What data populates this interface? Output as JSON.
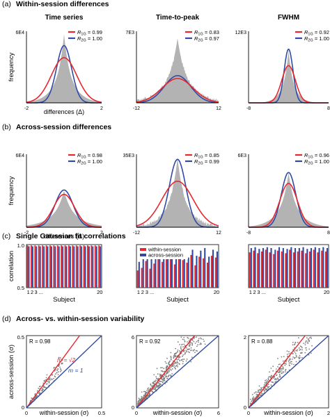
{
  "figure": {
    "section_titles": [
      {
        "letter": "(a)",
        "title": "Within-session differences"
      },
      {
        "letter": "(b)",
        "title": "Across-session differences"
      },
      {
        "letter": "(c)",
        "title": "Single Gaussian fit correlations"
      },
      {
        "letter": "(d)",
        "title": "Across- vs. within-session variability"
      }
    ],
    "column_titles": [
      "Time series",
      "Time-to-peak",
      "FWHM"
    ],
    "colors": {
      "red": "#e8262d",
      "blue": "#2f4aa5",
      "gray": "#b3b3b3",
      "dark_gray": "#808080"
    }
  },
  "chart_data": [
    {
      "id": "a1",
      "type": "area",
      "row": "a",
      "col": 0,
      "ylabel": "frequency",
      "xlabel": "differences (Δ)",
      "xlim": [
        -2,
        2
      ],
      "ymax_label": "6E4",
      "xtick_labels": [
        "-2",
        "2"
      ],
      "peak": 0.96,
      "sigma": 0.085,
      "fit_1g": {
        "sigma": 0.17,
        "amp": 0.63
      },
      "fit_2g": {
        "sigma": 0.1,
        "amp": 0.8
      },
      "legend": [
        {
          "label": "1G",
          "value": "0.99",
          "color": "red"
        },
        {
          "label": "2G",
          "value": "1.00",
          "color": "blue"
        }
      ]
    },
    {
      "id": "a2",
      "type": "area",
      "row": "a",
      "col": 1,
      "ylabel": "",
      "xlabel": "",
      "xlim": [
        -12,
        12
      ],
      "ymax_label": "7E3",
      "xtick_labels": [
        "-12",
        "12"
      ],
      "peak": 0.9,
      "sigma": 0.11,
      "fit_1g": {
        "sigma": 0.19,
        "amp": 0.34
      },
      "fit_2g": {
        "sigma": 0.16,
        "amp": 0.38
      },
      "legend": [
        {
          "label": "1G",
          "value": "0.83",
          "color": "red"
        },
        {
          "label": "2G",
          "value": "0.97",
          "color": "blue"
        }
      ]
    },
    {
      "id": "a3",
      "type": "area",
      "row": "a",
      "col": 2,
      "ylabel": "",
      "xlabel": "",
      "xlim": [
        -8,
        8
      ],
      "ymax_label": "12E3",
      "xtick_labels": [
        "-8",
        "8"
      ],
      "peak": 0.74,
      "sigma": 0.055,
      "fit_1g": {
        "sigma": 0.085,
        "amp": 0.52
      },
      "fit_2g": {
        "sigma": 0.055,
        "amp": 0.75
      },
      "legend": [
        {
          "label": "1G",
          "value": "0.92",
          "color": "red"
        },
        {
          "label": "2G",
          "value": "1.00",
          "color": "blue"
        }
      ]
    },
    {
      "id": "b1",
      "type": "area",
      "row": "b",
      "col": 0,
      "ylabel": "frequency",
      "xlabel": "differences (Δ)",
      "xlim": [
        -2,
        2
      ],
      "ymax_label": "6E4",
      "xtick_labels": [
        "-2",
        "2"
      ],
      "peak": 0.5,
      "sigma": 0.12,
      "fit_1g": {
        "sigma": 0.14,
        "amp": 0.45
      },
      "fit_2g": {
        "sigma": 0.12,
        "amp": 0.51
      },
      "legend": [
        {
          "label": "1G",
          "value": "0.98",
          "color": "red"
        },
        {
          "label": "2G",
          "value": "1.00",
          "color": "blue"
        }
      ]
    },
    {
      "id": "b2",
      "type": "area",
      "row": "b",
      "col": 1,
      "ylabel": "",
      "xlabel": "",
      "xlim": [
        -12,
        12
      ],
      "ymax_label": "35E3",
      "xtick_labels": [
        "-12",
        "12"
      ],
      "peak": 0.95,
      "sigma": 0.09,
      "fit_1g": {
        "sigma": 0.19,
        "amp": 0.63
      },
      "fit_2g": {
        "sigma": 0.1,
        "amp": 0.93
      },
      "legend": [
        {
          "label": "1G",
          "value": "0.85",
          "color": "red"
        },
        {
          "label": "2G",
          "value": "0.99",
          "color": "blue"
        }
      ]
    },
    {
      "id": "b3",
      "type": "area",
      "row": "b",
      "col": 2,
      "ylabel": "",
      "xlabel": "",
      "xlim": [
        -8,
        8
      ],
      "ymax_label": "6E3",
      "xtick_labels": [
        "-8",
        "8"
      ],
      "peak": 0.75,
      "sigma": 0.09,
      "fit_1g": {
        "sigma": 0.11,
        "amp": 0.6
      },
      "fit_2g": {
        "sigma": 0.09,
        "amp": 0.75
      },
      "legend": [
        {
          "label": "1G",
          "value": "0.96",
          "color": "red"
        },
        {
          "label": "2G",
          "value": "1.00",
          "color": "blue"
        }
      ]
    },
    {
      "id": "c1",
      "type": "bar",
      "row": "c",
      "col": 0,
      "ylabel": "correlation",
      "xlabel": "Subject",
      "ylim": [
        0.5,
        1.0
      ],
      "ytick_labels": [
        "0.5",
        "1.0"
      ],
      "xtick_labels": [
        "1",
        "2",
        "3 ...",
        "20"
      ],
      "series": [
        {
          "name": "within-session",
          "color": "red",
          "values": [
            0.99,
            0.99,
            0.99,
            0.99,
            0.99,
            0.99,
            0.99,
            0.99,
            0.99,
            0.99,
            0.99,
            0.99,
            0.99,
            0.99,
            0.99,
            0.99,
            0.99,
            0.99,
            0.99,
            0.99
          ]
        },
        {
          "name": "across-session",
          "color": "blue",
          "values": [
            0.98,
            0.98,
            0.98,
            0.98,
            0.98,
            0.98,
            0.98,
            0.98,
            0.98,
            0.98,
            0.98,
            0.98,
            0.98,
            0.98,
            0.98,
            0.98,
            0.98,
            0.98,
            0.98,
            0.98
          ]
        }
      ],
      "legend": []
    },
    {
      "id": "c2",
      "type": "bar",
      "row": "c",
      "col": 1,
      "ylabel": "",
      "xlabel": "Subject",
      "ylim": [
        0.5,
        1.0
      ],
      "ytick_labels": [],
      "xtick_labels": [
        "1",
        "2",
        "3 ...",
        "20"
      ],
      "series": [
        {
          "name": "within-session",
          "color": "red",
          "values": [
            0.7,
            0.73,
            0.81,
            0.72,
            0.78,
            0.86,
            0.8,
            0.83,
            0.85,
            0.77,
            0.87,
            0.82,
            0.79,
            0.88,
            0.76,
            0.86,
            0.84,
            0.79,
            0.87,
            0.85
          ]
        },
        {
          "name": "across-session",
          "color": "blue",
          "values": [
            0.8,
            0.84,
            0.87,
            0.85,
            0.9,
            0.93,
            0.94,
            0.89,
            0.92,
            0.86,
            0.95,
            0.91,
            0.85,
            0.94,
            0.87,
            0.93,
            0.96,
            0.86,
            0.94,
            0.92
          ]
        }
      ],
      "legend": [
        {
          "label": "within-session",
          "color": "red"
        },
        {
          "label": "across-session",
          "color": "blue"
        }
      ]
    },
    {
      "id": "c3",
      "type": "bar",
      "row": "c",
      "col": 2,
      "ylabel": "",
      "xlabel": "Subject",
      "ylim": [
        0.5,
        1.0
      ],
      "ytick_labels": [],
      "xtick_labels": [
        "1",
        "2",
        "3 ...",
        "20"
      ],
      "series": [
        {
          "name": "within-session",
          "color": "red",
          "values": [
            0.91,
            0.93,
            0.9,
            0.92,
            0.94,
            0.91,
            0.89,
            0.93,
            0.92,
            0.9,
            0.94,
            0.91,
            0.92,
            0.93,
            0.9,
            0.92,
            0.94,
            0.91,
            0.93,
            0.92
          ]
        },
        {
          "name": "across-session",
          "color": "blue",
          "values": [
            0.96,
            0.97,
            0.95,
            0.96,
            0.97,
            0.96,
            0.94,
            0.97,
            0.96,
            0.95,
            0.97,
            0.96,
            0.96,
            0.97,
            0.95,
            0.96,
            0.97,
            0.96,
            0.97,
            0.96
          ]
        }
      ],
      "legend": []
    },
    {
      "id": "d1",
      "type": "scatter",
      "row": "d",
      "col": 0,
      "ylabel": "across-session (σ)",
      "xlabel": "within-session (σ)",
      "xlim": [
        0,
        0.5
      ],
      "ylim": [
        0,
        0.5
      ],
      "xtick_labels": [
        "0",
        "0.5"
      ],
      "ytick_labels": [
        "0",
        "0.5"
      ],
      "r_label": "R = 0.98",
      "line_labels": {
        "red": "m = √2",
        "blue": "m = 1"
      },
      "cloud": {
        "x_min": 0.02,
        "x_max": 0.24,
        "slope": 1.25,
        "spread": 0.025,
        "n": 160
      }
    },
    {
      "id": "d2",
      "type": "scatter",
      "row": "d",
      "col": 1,
      "ylabel": "",
      "xlabel": "within-session (σ)",
      "xlim": [
        0,
        6
      ],
      "ylim": [
        0,
        6
      ],
      "xtick_labels": [
        "0",
        "6"
      ],
      "ytick_labels": [
        "0",
        "6"
      ],
      "r_label": "R = 0.92",
      "line_labels": {},
      "cloud": {
        "x_min": 0.1,
        "x_max": 5.2,
        "slope": 1.38,
        "spread": 0.55,
        "n": 650
      }
    },
    {
      "id": "d3",
      "type": "scatter",
      "row": "d",
      "col": 2,
      "ylabel": "",
      "xlabel": "within-session (σ)",
      "xlim": [
        0,
        2
      ],
      "ylim": [
        0,
        2
      ],
      "xtick_labels": [
        "0",
        "2"
      ],
      "ytick_labels": [
        "0",
        "2"
      ],
      "r_label": "R = 0.88",
      "line_labels": {},
      "cloud": {
        "x_min": 0.05,
        "x_max": 1.6,
        "slope": 1.3,
        "spread": 0.18,
        "n": 380
      }
    }
  ]
}
